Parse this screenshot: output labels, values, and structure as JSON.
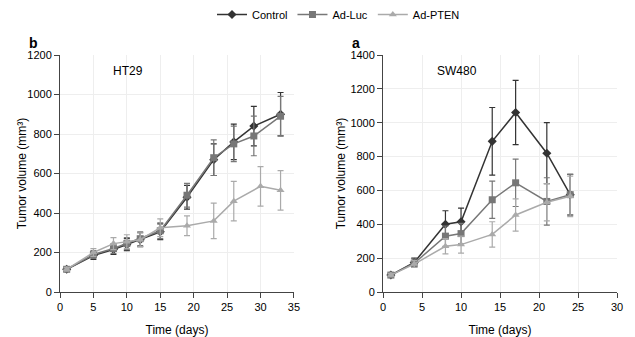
{
  "chart_data": [
    {
      "type": "line",
      "title": "HT29",
      "annotations": [
        "b"
      ],
      "x_label": "Time (days)",
      "y_label": "Tumor volume (mm³)",
      "xlim": [
        0,
        35
      ],
      "xticks": [
        0,
        5,
        10,
        15,
        20,
        25,
        30,
        35
      ],
      "ylim": [
        0,
        1200
      ],
      "yticks": [
        0,
        200,
        400,
        600,
        800,
        1000,
        1200
      ],
      "legend": "upper center",
      "series": [
        {
          "name": "Control",
          "color": "#333333",
          "marker": "diamond",
          "x": [
            1,
            5,
            8,
            10,
            12,
            15,
            19,
            23,
            26,
            29,
            33
          ],
          "values": [
            115,
            185,
            215,
            240,
            265,
            305,
            480,
            670,
            760,
            840,
            900
          ],
          "yerr": [
            10,
            20,
            25,
            30,
            35,
            40,
            60,
            80,
            90,
            100,
            110
          ]
        },
        {
          "name": "Ad-Luc",
          "color": "#777777",
          "marker": "square",
          "x": [
            1,
            5,
            8,
            10,
            12,
            15,
            19,
            23,
            26,
            29,
            33
          ],
          "values": [
            115,
            190,
            220,
            245,
            270,
            310,
            490,
            680,
            750,
            790,
            890
          ],
          "yerr": [
            10,
            20,
            25,
            30,
            35,
            40,
            60,
            90,
            90,
            100,
            100
          ]
        },
        {
          "name": "Ad-PTEN",
          "color": "#aaaaaa",
          "marker": "triangle-up",
          "x": [
            1,
            5,
            8,
            10,
            12,
            15,
            19,
            23,
            26,
            30,
            33
          ],
          "values": [
            115,
            200,
            245,
            255,
            265,
            325,
            335,
            360,
            460,
            535,
            515
          ],
          "yerr": [
            10,
            20,
            30,
            35,
            35,
            45,
            50,
            90,
            100,
            100,
            100
          ]
        }
      ]
    },
    {
      "type": "line",
      "title": "SW480",
      "annotations": [
        "a"
      ],
      "x_label": "Time (days)",
      "y_label": "Tumor volume (mm³)",
      "xlim": [
        0,
        30
      ],
      "xticks": [
        0,
        5,
        10,
        15,
        20,
        25,
        30
      ],
      "ylim": [
        0,
        1400
      ],
      "yticks": [
        0,
        200,
        400,
        600,
        800,
        1000,
        1200,
        1400
      ],
      "legend": "upper center",
      "series": [
        {
          "name": "Control",
          "color": "#333333",
          "marker": "diamond",
          "x": [
            1,
            4,
            8,
            10,
            14,
            17,
            21,
            24
          ],
          "values": [
            100,
            175,
            400,
            415,
            890,
            1060,
            820,
            575
          ],
          "yerr": [
            10,
            25,
            80,
            80,
            200,
            190,
            180,
            120
          ]
        },
        {
          "name": "Ad-Luc",
          "color": "#777777",
          "marker": "square",
          "x": [
            1,
            4,
            8,
            10,
            14,
            17,
            21,
            24
          ],
          "values": [
            100,
            170,
            330,
            345,
            545,
            645,
            535,
            575
          ],
          "yerr": [
            10,
            25,
            60,
            60,
            110,
            140,
            140,
            120
          ]
        },
        {
          "name": "Ad-PTEN",
          "color": "#aaaaaa",
          "marker": "triangle-up",
          "x": [
            1,
            4,
            8,
            10,
            14,
            17,
            21,
            24
          ],
          "values": [
            100,
            165,
            270,
            280,
            340,
            455,
            530,
            565
          ],
          "yerr": [
            10,
            20,
            45,
            50,
            75,
            95,
            110,
            120
          ]
        }
      ]
    }
  ]
}
